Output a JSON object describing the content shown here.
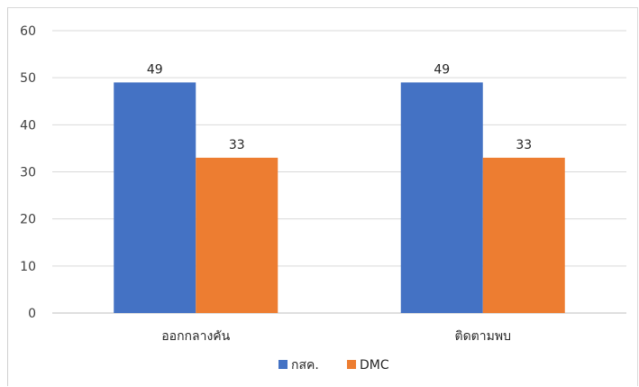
{
  "chart_data": {
    "type": "bar",
    "title": "",
    "xlabel": "",
    "ylabel": "",
    "categories": [
      "ออกกลางคัน",
      "ติดตามพบ"
    ],
    "series": [
      {
        "name": "กสค.",
        "values": [
          49,
          49
        ],
        "color": "#4472C4"
      },
      {
        "name": "DMC",
        "values": [
          33,
          33
        ],
        "color": "#ED7D31"
      }
    ],
    "ylim": [
      0,
      60
    ],
    "yticks": [
      0,
      10,
      20,
      30,
      40,
      50,
      60
    ],
    "grid": true,
    "data_labels": true,
    "legend_position": "bottom"
  },
  "colors": {
    "grid": "#d9d9d9",
    "axis": "#bfbfbf"
  }
}
